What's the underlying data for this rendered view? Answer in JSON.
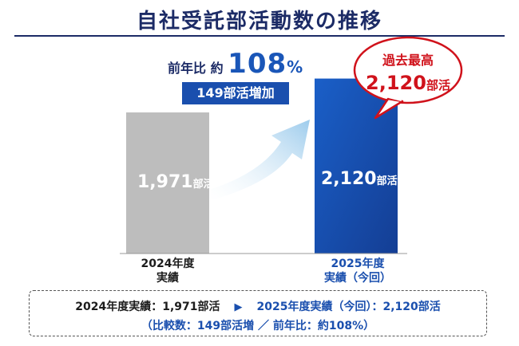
{
  "title": "自社受託部活動数の推移",
  "yoy": {
    "label": "前年比 約",
    "value": "108",
    "unit": "%"
  },
  "increase_badge": "149部活増加",
  "record_bubble": {
    "line1": "過去最高",
    "value": "2,120",
    "unit": "部活"
  },
  "summary": {
    "prev_text": "2024年度実績：1,971部活",
    "arrow": "▶",
    "curr_text": "2025年度実績（今回）：2,120部活",
    "detail": "（比較数：149部活増 ／ 前年比：約108%）"
  },
  "colors": {
    "prev_bar": "#bdbdbd",
    "curr_bar": "#1a4fae",
    "accent": "#1a56b8",
    "record": "#d0121b",
    "arrow": "#b9d8ef"
  },
  "chart_data": {
    "type": "bar",
    "categories": [
      "2024年度\n実績",
      "2025年度\n実績（今回）"
    ],
    "category_lines": [
      [
        "2024年度",
        "実績"
      ],
      [
        "2025年度",
        "実績（今回）"
      ]
    ],
    "values": [
      1971,
      2120
    ],
    "value_labels": [
      "1,971",
      "2,120"
    ],
    "unit": "部活",
    "ylim": [
      0,
      2200
    ],
    "grid": false,
    "legend": "none"
  }
}
